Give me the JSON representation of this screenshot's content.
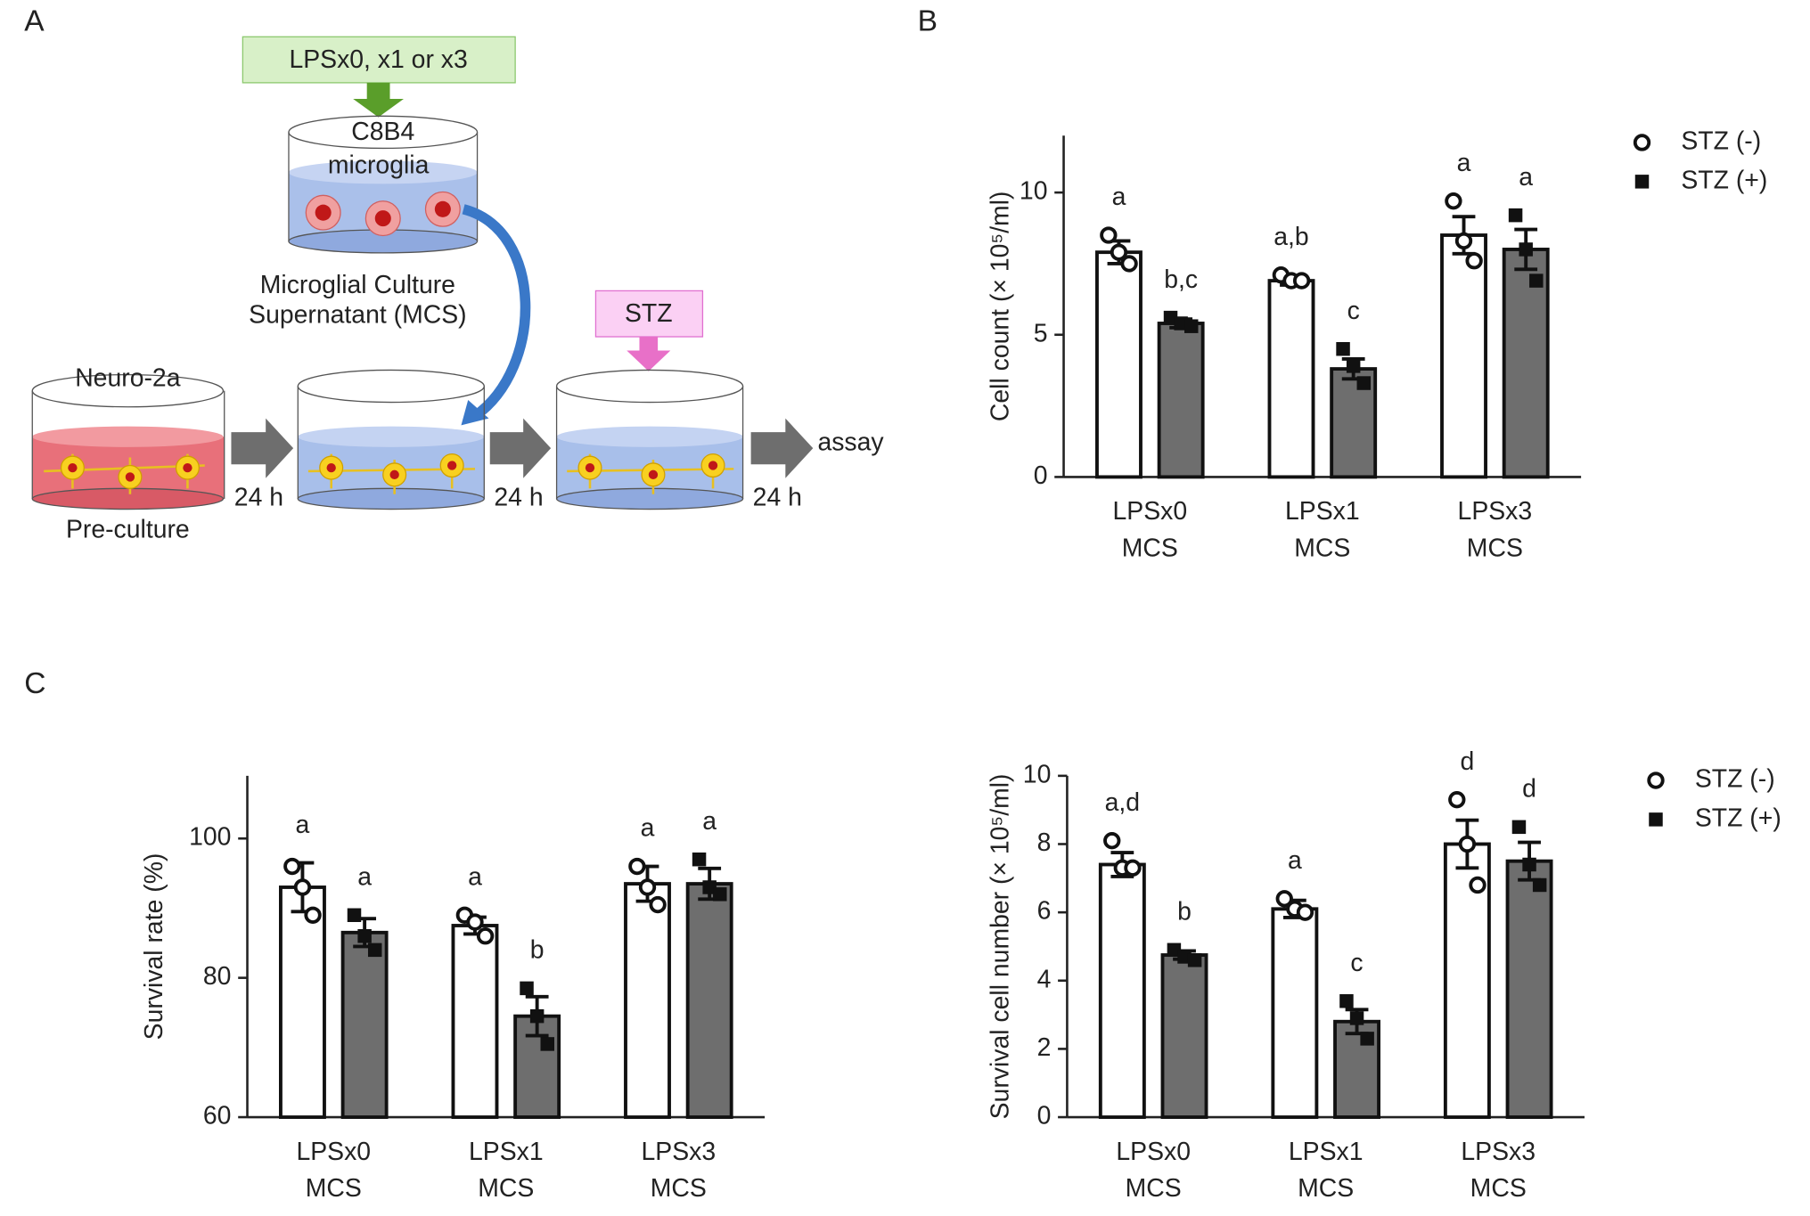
{
  "panel_labels": [
    "A",
    "B",
    "C"
  ],
  "panel_a": {
    "lps_box": "LPSx0, x1 or x3",
    "microglia_line1": "C8B4",
    "microglia_line2": "microglia",
    "mcs_line1": "Microglial Culture",
    "mcs_line2": "Supernatant (MCS)",
    "stz_box": "STZ",
    "neuro_label": "Neuro-2a",
    "preculture_label": "Pre-culture",
    "time_labels": [
      "24 h",
      "24 h",
      "24 h"
    ],
    "assay_label": "assay"
  },
  "chart_data": [
    {
      "type": "bar",
      "ylabel": "Cell count (× 10⁵/ml)",
      "categories": [
        "LPSx0 MCS",
        "LPSx1 MCS",
        "LPSx3 MCS"
      ],
      "ylim": [
        0,
        12
      ],
      "yticks": [
        0,
        5,
        10
      ],
      "legend": true,
      "series": [
        {
          "name": "STZ (-)",
          "color": "#ffffff",
          "values": [
            7.9,
            6.9,
            8.5
          ],
          "errors": [
            0.4,
            0.15,
            0.65
          ],
          "points": [
            [
              8.5,
              7.9,
              7.5
            ],
            [
              7.1,
              6.9,
              6.9
            ],
            [
              9.7,
              8.3,
              7.6
            ]
          ],
          "annotations": [
            "a",
            "a,b",
            "a"
          ]
        },
        {
          "name": "STZ (+)",
          "color": "#6e6e6e",
          "values": [
            5.4,
            3.8,
            8.0
          ],
          "errors": [
            0.15,
            0.35,
            0.7
          ],
          "points": [
            [
              5.6,
              5.4,
              5.3
            ],
            [
              4.5,
              3.9,
              3.3
            ],
            [
              9.2,
              8.0,
              6.9
            ]
          ],
          "annotations": [
            "b,c",
            "c",
            "a"
          ]
        }
      ]
    },
    {
      "type": "bar",
      "ylabel": "Survival rate (%)",
      "categories": [
        "LPSx0 MCS",
        "LPSx1 MCS",
        "LPSx3 MCS"
      ],
      "ylim": [
        60,
        109
      ],
      "yticks": [
        60,
        80,
        100
      ],
      "legend": false,
      "series": [
        {
          "name": "STZ (-)",
          "color": "#ffffff",
          "values": [
            93,
            87.5,
            93.5
          ],
          "errors": [
            3.5,
            1.2,
            2.5
          ],
          "points": [
            [
              96,
              93,
              89
            ],
            [
              89,
              88,
              86
            ],
            [
              96,
              93,
              90.5
            ]
          ],
          "annotations": [
            "a",
            "a",
            "a"
          ]
        },
        {
          "name": "STZ (+)",
          "color": "#6e6e6e",
          "values": [
            86.5,
            74.5,
            93.5
          ],
          "errors": [
            2,
            2.8,
            2.2
          ],
          "points": [
            [
              89,
              86,
              84
            ],
            [
              78.5,
              74.5,
              70.5
            ],
            [
              97,
              93,
              92
            ]
          ],
          "annotations": [
            "a",
            "b",
            "a"
          ]
        }
      ]
    },
    {
      "type": "bar",
      "ylabel": "Survival cell number (× 10⁵/ml)",
      "categories": [
        "LPSx0 MCS",
        "LPSx1 MCS",
        "LPSx3 MCS"
      ],
      "ylim": [
        0,
        10
      ],
      "yticks": [
        0,
        2,
        4,
        6,
        8,
        10
      ],
      "legend": true,
      "series": [
        {
          "name": "STZ (-)",
          "color": "#ffffff",
          "values": [
            7.4,
            6.1,
            8.0
          ],
          "errors": [
            0.35,
            0.25,
            0.7
          ],
          "points": [
            [
              8.1,
              7.3,
              7.3
            ],
            [
              6.4,
              6.1,
              6.0
            ],
            [
              9.3,
              8.0,
              6.8
            ]
          ],
          "annotations": [
            "a,d",
            "a",
            "d"
          ]
        },
        {
          "name": "STZ (+)",
          "color": "#6e6e6e",
          "values": [
            4.75,
            2.8,
            7.5
          ],
          "errors": [
            0.12,
            0.35,
            0.55
          ],
          "points": [
            [
              4.9,
              4.7,
              4.6
            ],
            [
              3.4,
              2.9,
              2.3
            ],
            [
              8.5,
              7.4,
              6.8
            ]
          ],
          "annotations": [
            "b",
            "c",
            "d"
          ]
        }
      ]
    }
  ]
}
